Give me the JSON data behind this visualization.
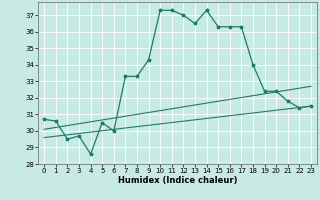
{
  "xlabel": "Humidex (Indice chaleur)",
  "bg_color": "#c8eae4",
  "line_color": "#1e7a6a",
  "grid_color": "#ffffff",
  "xlim": [
    -0.5,
    23.5
  ],
  "ylim": [
    28,
    37.8
  ],
  "yticks": [
    28,
    29,
    30,
    31,
    32,
    33,
    34,
    35,
    36,
    37
  ],
  "xticks": [
    0,
    1,
    2,
    3,
    4,
    5,
    6,
    7,
    8,
    9,
    10,
    11,
    12,
    13,
    14,
    15,
    16,
    17,
    18,
    19,
    20,
    21,
    22,
    23
  ],
  "series1_x": [
    0,
    1,
    2,
    3,
    4,
    5,
    6,
    7,
    8,
    9,
    10,
    11,
    12,
    13,
    14,
    15,
    16,
    17,
    18,
    19,
    20,
    21,
    22,
    23
  ],
  "series1_y": [
    30.7,
    30.6,
    29.5,
    29.7,
    28.6,
    30.5,
    30.0,
    33.3,
    33.3,
    34.3,
    37.3,
    37.3,
    37.0,
    36.5,
    37.3,
    36.3,
    36.3,
    36.3,
    34.0,
    32.4,
    32.4,
    31.8,
    31.4,
    31.5
  ],
  "series2_x": [
    0,
    23
  ],
  "series2_y": [
    29.6,
    31.5
  ],
  "series3_x": [
    0,
    23
  ],
  "series3_y": [
    30.1,
    32.7
  ]
}
